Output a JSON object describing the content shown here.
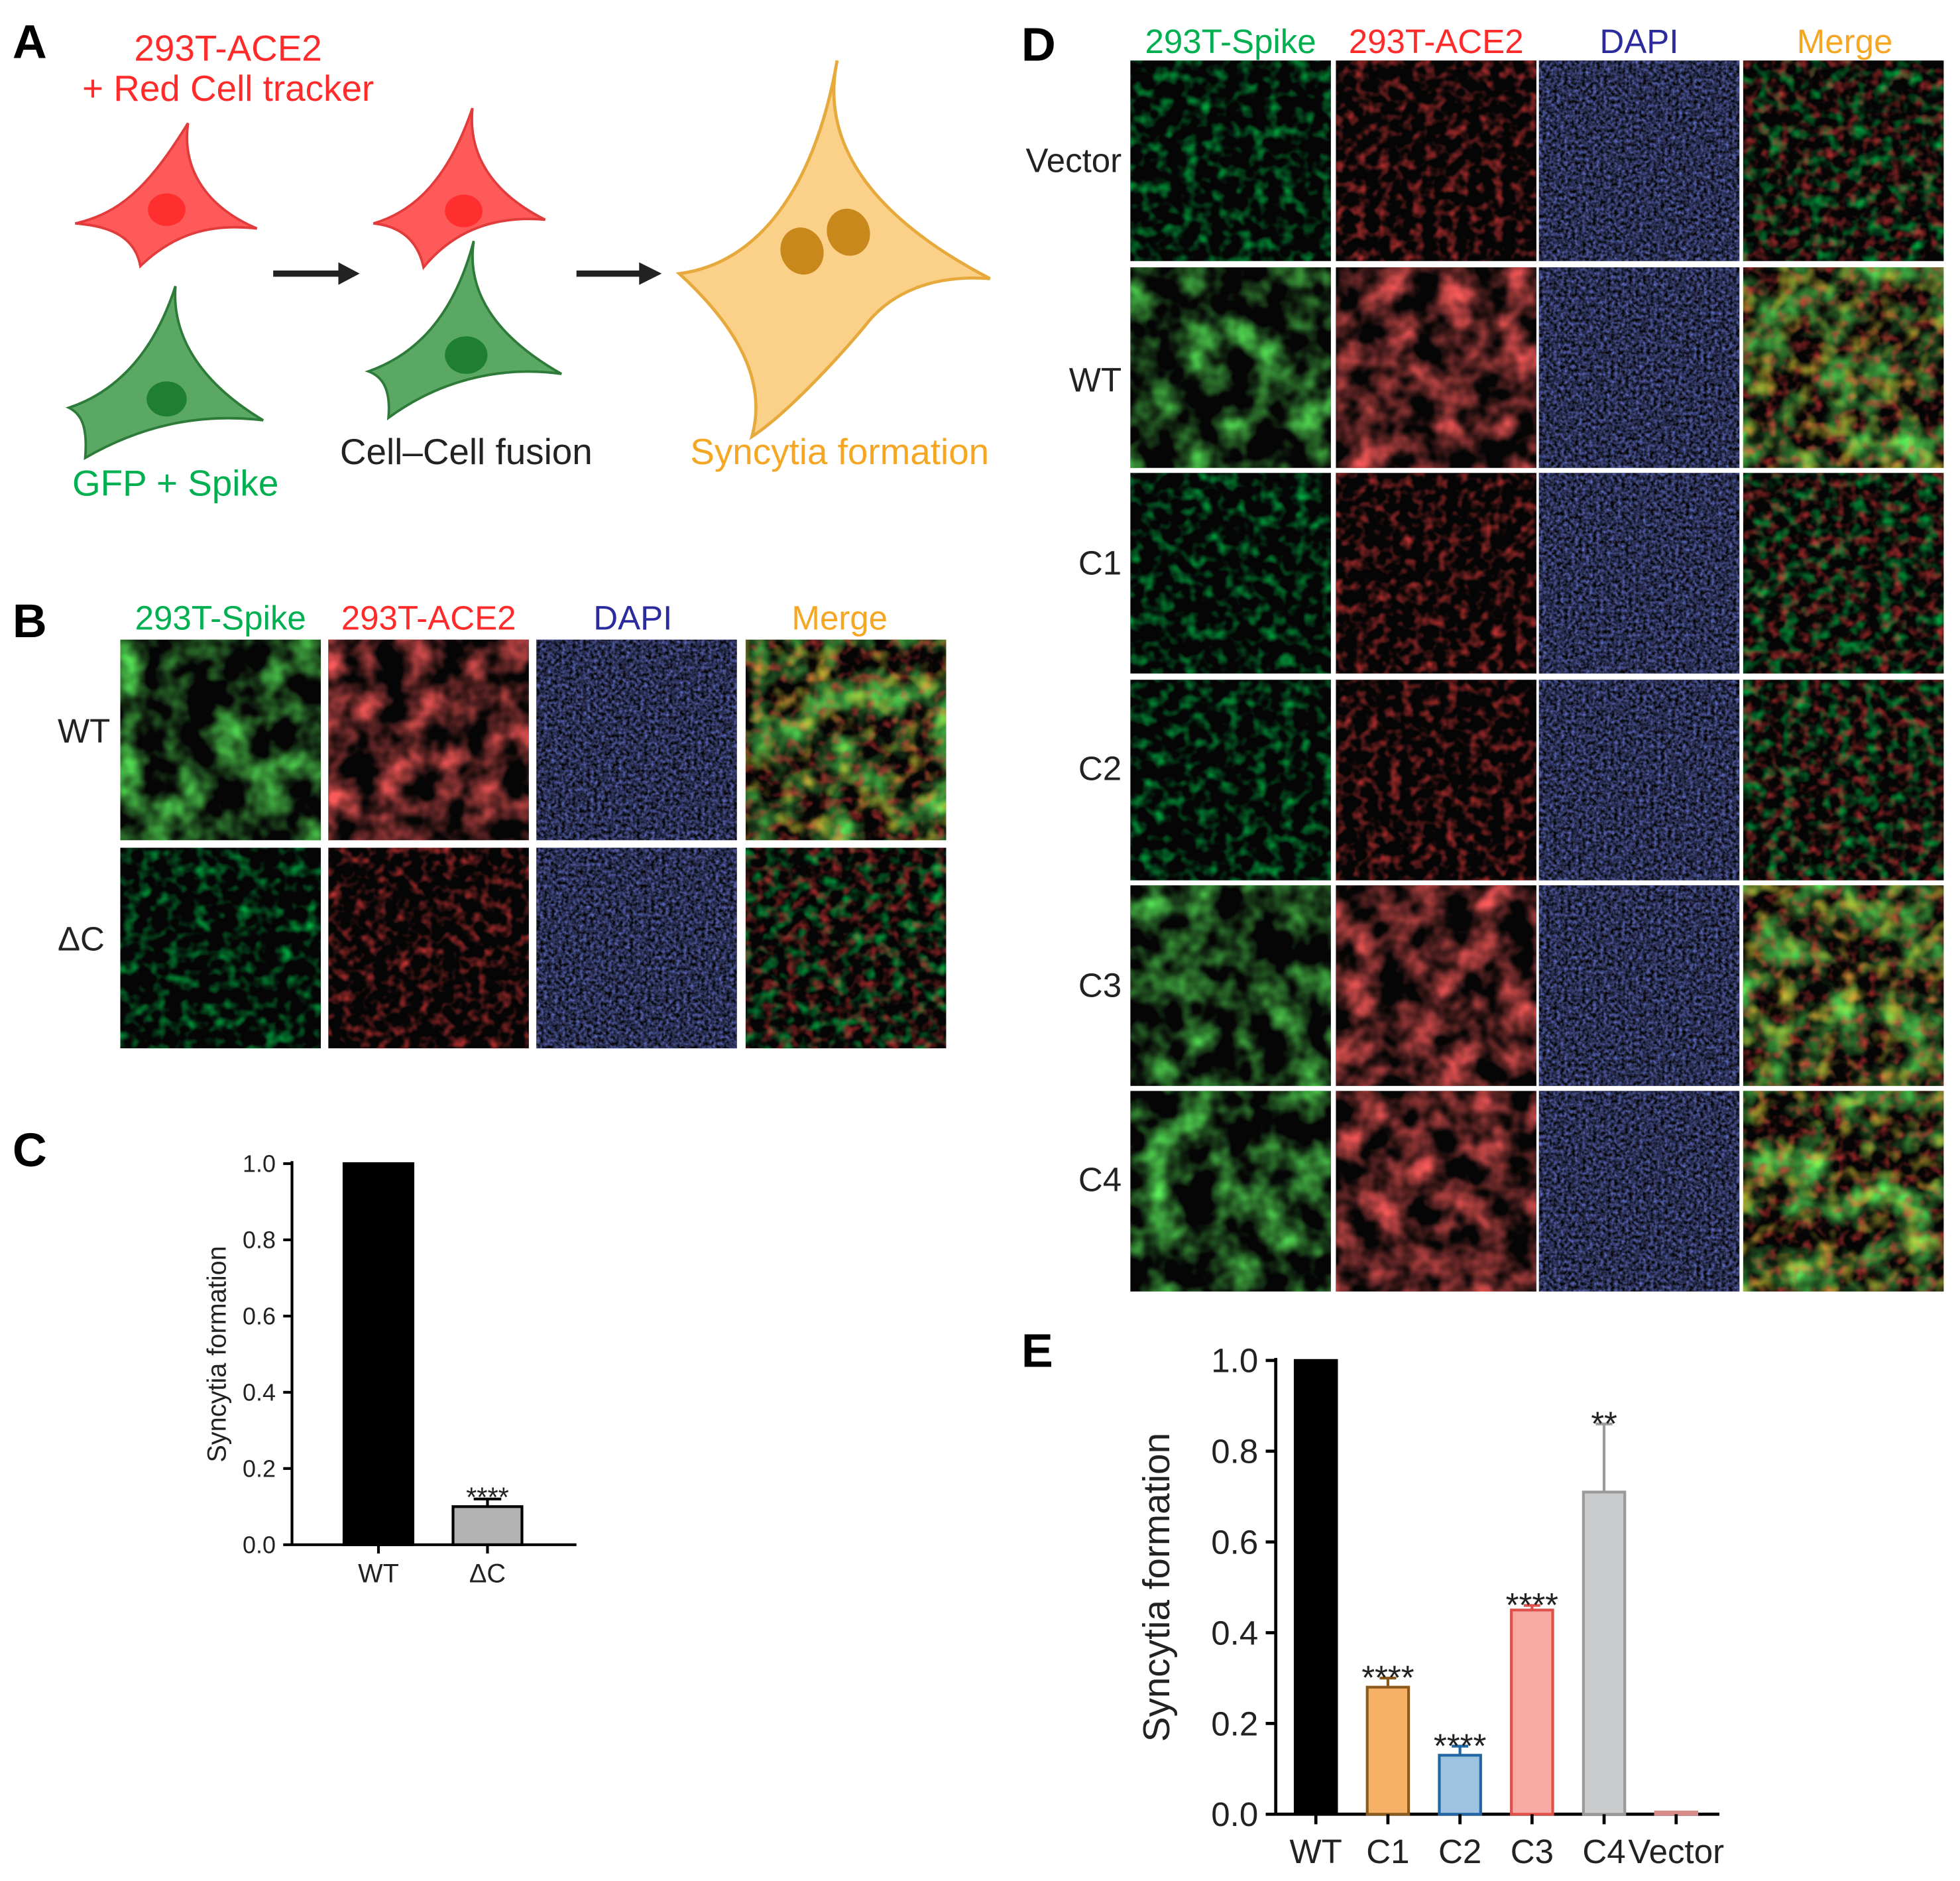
{
  "panel_letters": [
    "A",
    "B",
    "C",
    "D",
    "E"
  ],
  "colors": {
    "green": "#00b050",
    "red": "#ff2b2b",
    "blue": "#2b2b9e",
    "orange": "#f5a623",
    "black": "#222222"
  },
  "panel_a": {
    "ace2_label_line1": "293T-ACE2",
    "ace2_label_line2": "+ Red Cell tracker",
    "spike_label": "GFP + Spike",
    "fusion_label": "Cell–Cell fusion",
    "syncytia_label": "Syncytia formation"
  },
  "panel_b": {
    "columns": [
      "293T-Spike",
      "293T-ACE2",
      "DAPI",
      "Merge"
    ],
    "rows": [
      "WT",
      "ΔC"
    ]
  },
  "panel_d": {
    "columns": [
      "293T-Spike",
      "293T-ACE2",
      "DAPI",
      "Merge"
    ],
    "rows": [
      "Vector",
      "WT",
      "C1",
      "C2",
      "C3",
      "C4"
    ]
  },
  "chart_data": [
    {
      "panel": "C",
      "type": "bar",
      "ylabel": "Syncytia formation",
      "xlabel": "",
      "ylim": [
        0,
        1.0
      ],
      "yticks": [
        "0.0",
        "0.2",
        "0.4",
        "0.6",
        "0.8",
        "1.0"
      ],
      "categories": [
        "WT",
        "ΔC"
      ],
      "values": [
        1.0,
        0.1
      ],
      "errors": [
        0,
        0.02
      ],
      "significance": [
        "",
        "****"
      ],
      "fill": [
        "#000000",
        "#b3b3b3"
      ],
      "stroke": [
        "#000000",
        "#000000"
      ]
    },
    {
      "panel": "E",
      "type": "bar",
      "ylabel": "Syncytia formation",
      "xlabel": "",
      "ylim": [
        0,
        1.0
      ],
      "yticks": [
        "0.0",
        "0.2",
        "0.4",
        "0.6",
        "0.8",
        "1.0"
      ],
      "categories": [
        "WT",
        "C1",
        "C2",
        "C3",
        "C4",
        "Vector"
      ],
      "values": [
        1.0,
        0.28,
        0.13,
        0.45,
        0.71,
        0.005
      ],
      "errors": [
        0,
        0.02,
        0.02,
        0.01,
        0.15,
        0
      ],
      "significance": [
        "",
        "****",
        "****",
        "****",
        "**",
        ""
      ],
      "fill": [
        "#000000",
        "#f7b167",
        "#9ec3e0",
        "#f7a9a3",
        "#c9cbcd",
        "#f0d6d6"
      ],
      "stroke": [
        "#000000",
        "#8c5a1c",
        "#2166a5",
        "#e0504a",
        "#9a9a9a",
        "#d88c8c"
      ]
    }
  ]
}
